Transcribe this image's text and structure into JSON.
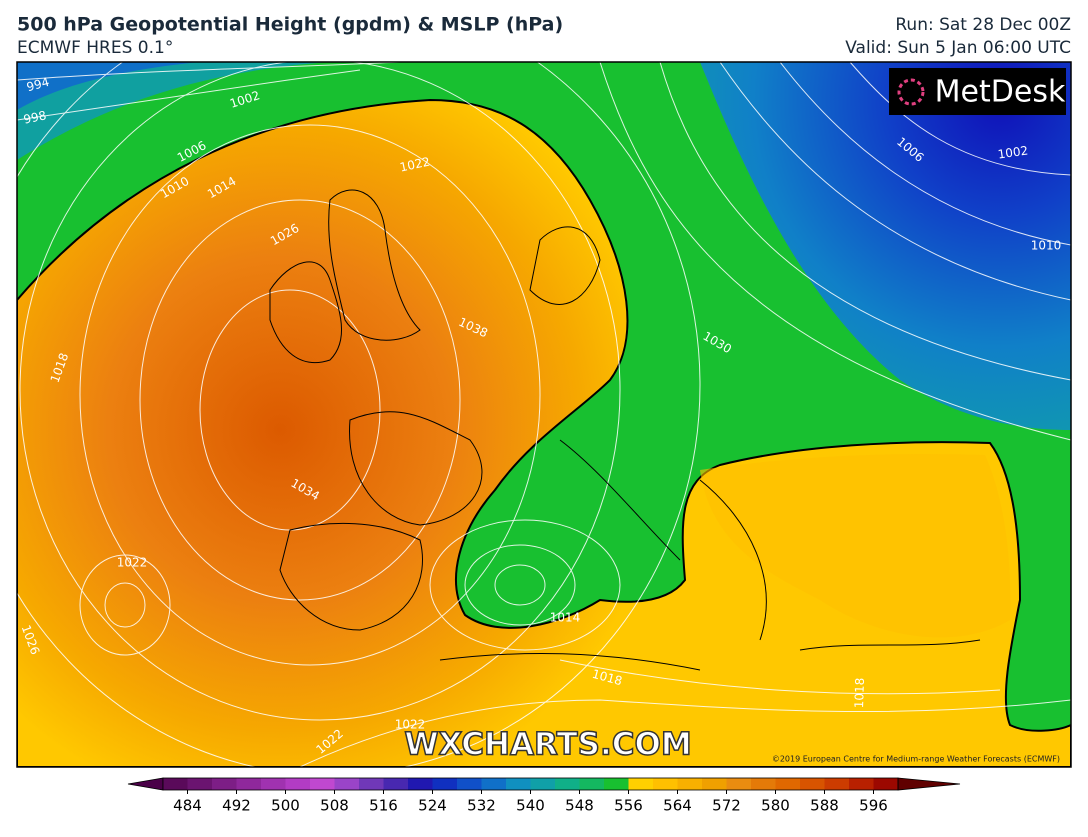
{
  "header": {
    "title": "500 hPa Geopotential Height (gpdm) & MSLP (hPa)",
    "subtitle": "ECMWF HRES 0.1°",
    "run": "Run: Sat 28 Dec 00Z",
    "valid": "Valid: Sun 5 Jan 06:00 UTC"
  },
  "logo": "MetDesk",
  "watermark": "WXCHARTS.COM",
  "copyright": "©2019 European Centre for Medium-range Weather Forecasts (ECMWF)",
  "contour_labels": [
    "994",
    "998",
    "1002",
    "1006",
    "1010",
    "1014",
    "1022",
    "1026",
    "1038",
    "1018",
    "1034",
    "1022",
    "1026",
    "1014",
    "1018",
    "1022",
    "1022",
    "1018",
    "1030",
    "1006",
    "1002",
    "1010"
  ],
  "colorbar": {
    "ticks": [
      484,
      492,
      500,
      508,
      516,
      524,
      532,
      540,
      548,
      556,
      564,
      572,
      580,
      588,
      596
    ],
    "colors": [
      "#5a0a5a",
      "#6b1470",
      "#7d1e86",
      "#8f289c",
      "#a032b0",
      "#b23cc4",
      "#c048d0",
      "#9a44c8",
      "#7038b8",
      "#4828b0",
      "#2018b0",
      "#1030c0",
      "#1050c8",
      "#1070c8",
      "#1090c0",
      "#10a0a8",
      "#10b088",
      "#14b860",
      "#18c030",
      "#ffd000",
      "#ffc000",
      "#f8b000",
      "#f0a000",
      "#ea8c10",
      "#e47a08",
      "#e06800",
      "#d85400",
      "#cc3c00",
      "#b82000",
      "#9c0800"
    ],
    "under": "#4a0048",
    "over": "#600000"
  }
}
